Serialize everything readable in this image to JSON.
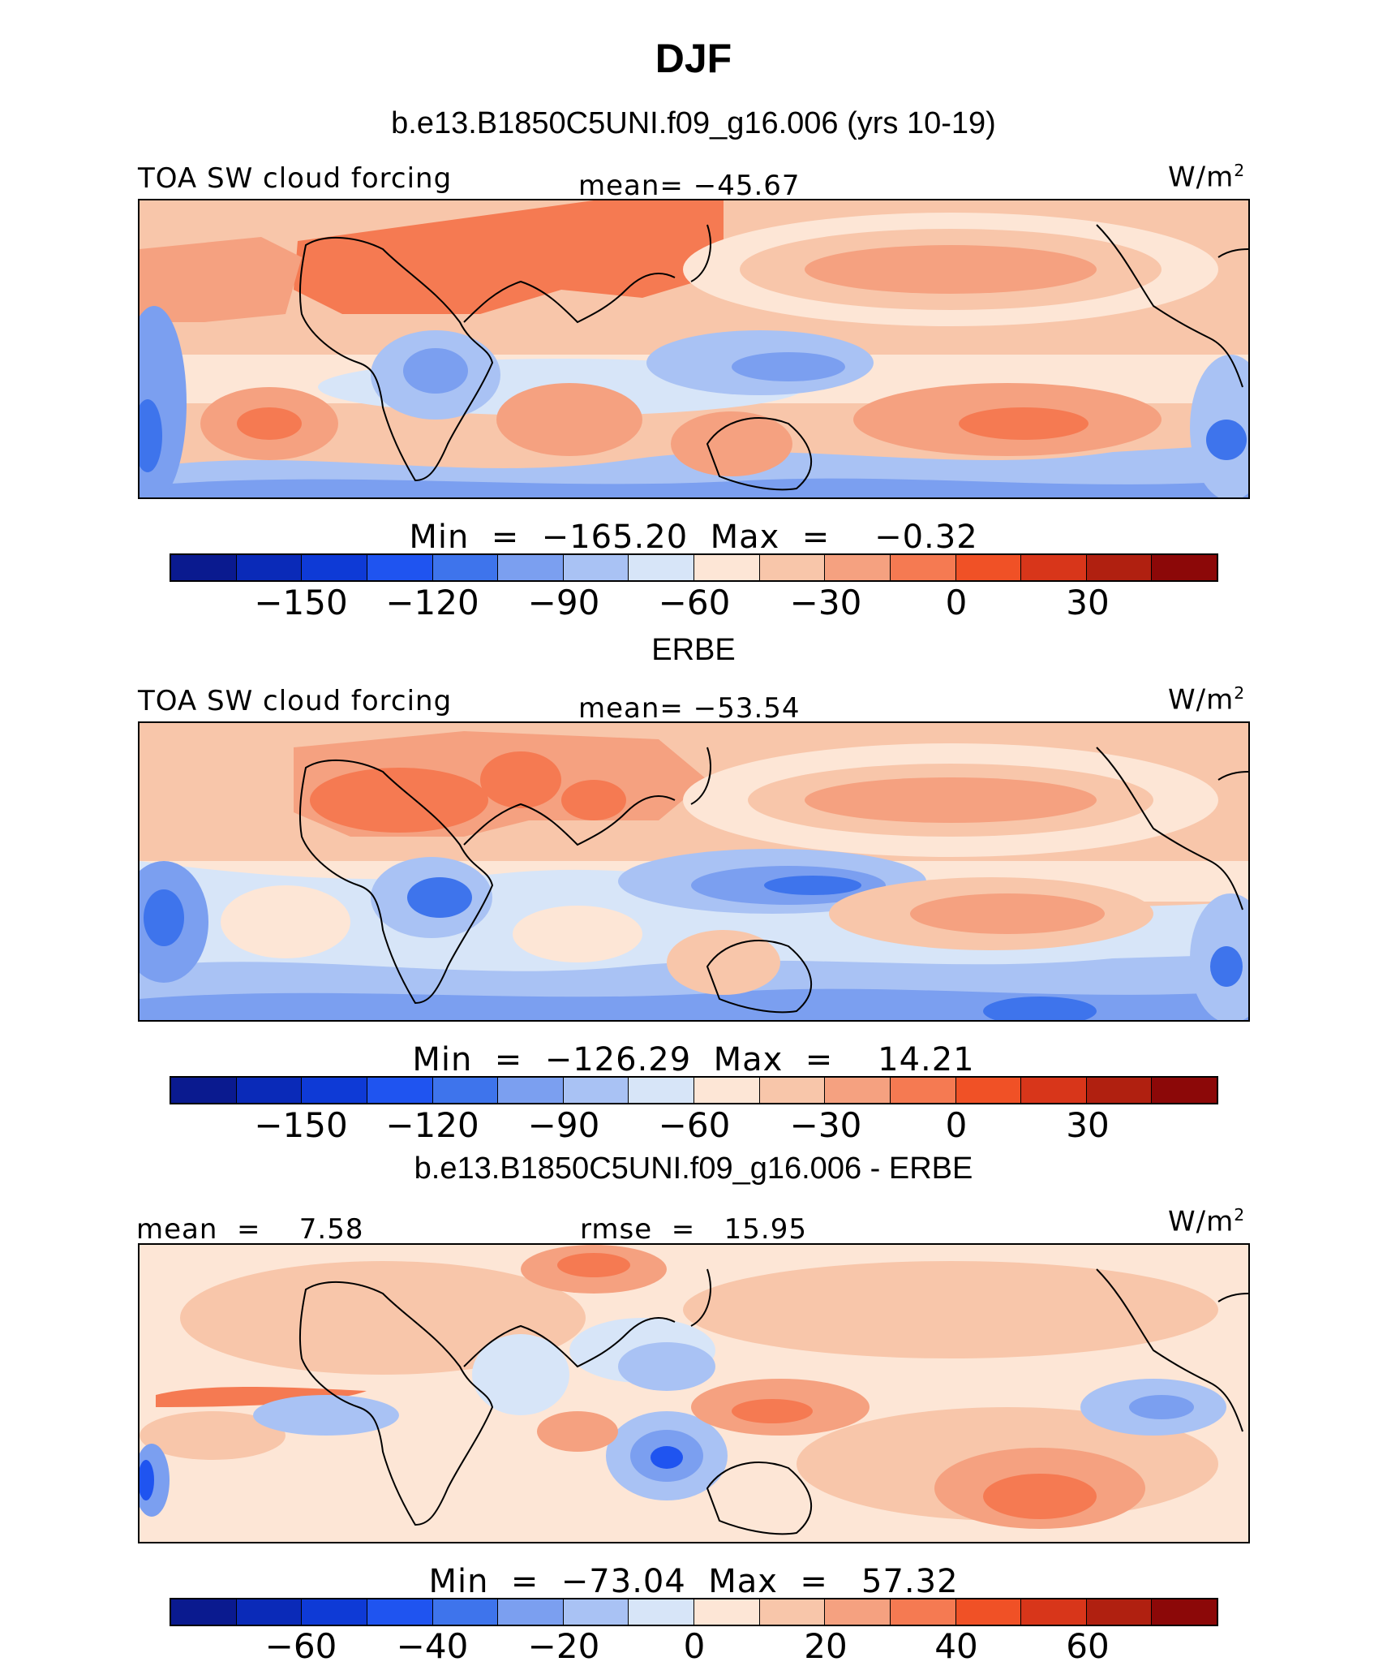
{
  "title": "DJF",
  "colors": [
    "#0a1a8f",
    "#0a2ab8",
    "#0e3ad6",
    "#1f54f0",
    "#3e74ec",
    "#7b9ff0",
    "#a9c2f4",
    "#d7e5f8",
    "#fde6d6",
    "#f8c6aa",
    "#f5a180",
    "#f57a52",
    "#f05126",
    "#d8361a",
    "#b02010",
    "#8c0808"
  ],
  "panels": [
    {
      "heading": "b.e13.B1850C5UNI.f09_g16.006 (yrs 10-19)",
      "left_label": "TOA SW cloud forcing",
      "center_label": "mean= −45.67",
      "units": "W/m",
      "units_sup": "2",
      "minmax": "Min  =  −165.20  Max  =    −0.32",
      "ticks": [
        "−150",
        "−120",
        "−90",
        "−60",
        "−30",
        "0",
        "30"
      ]
    },
    {
      "heading": "ERBE",
      "left_label": "TOA SW cloud forcing",
      "center_label": "mean= −53.54",
      "units": "W/m",
      "units_sup": "2",
      "minmax": "Min  =  −126.29  Max  =    14.21",
      "ticks": [
        "−150",
        "−120",
        "−90",
        "−60",
        "−30",
        "0",
        "30"
      ]
    },
    {
      "heading": "b.e13.B1850C5UNI.f09_g16.006 - ERBE",
      "left_label": "mean  =    7.58",
      "center_label": "rmse  =   15.95",
      "units": "W/m",
      "units_sup": "2",
      "minmax": "Min  =  −73.04  Max  =   57.32",
      "ticks": [
        "−60",
        "−40",
        "−20",
        "0",
        "20",
        "40",
        "60"
      ]
    }
  ]
}
